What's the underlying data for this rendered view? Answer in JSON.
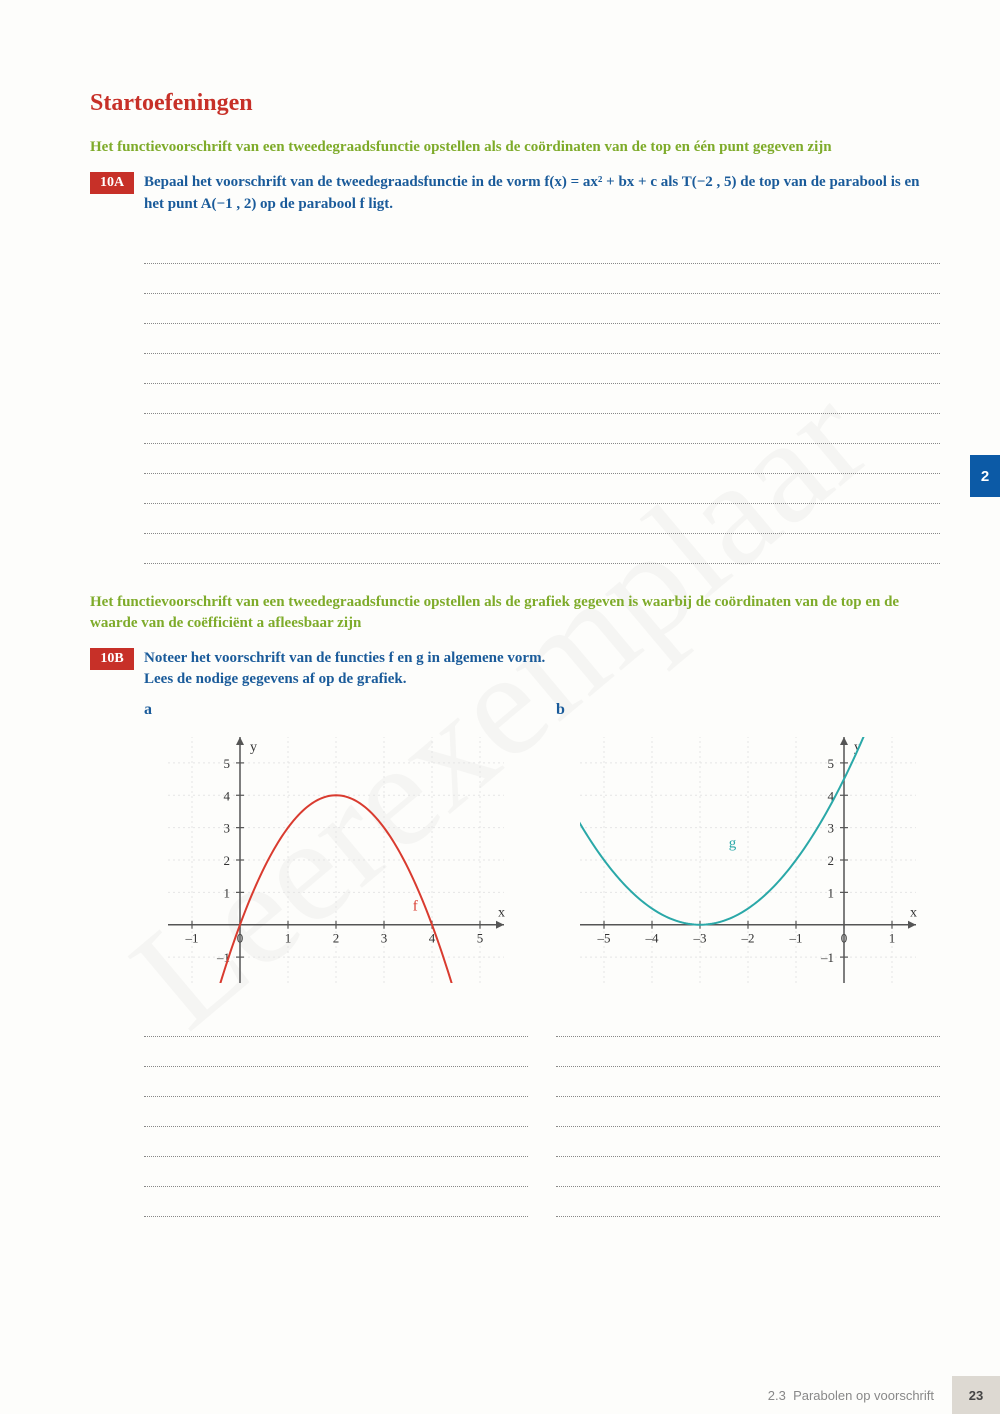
{
  "watermark": "Leerexemplaar",
  "section_title": "Startoefeningen",
  "intro1": "Het functievoorschrift van een tweedegraadsfunctie opstellen als de coördinaten van de top en één punt gegeven zijn",
  "ex10a": {
    "badge": "10A",
    "text": "Bepaal het voorschrift van de tweedegraadsfunctie in de vorm f(x) = ax² + bx + c als T(−2 , 5) de top van de parabool is en het punt A(−1 , 2) op de parabool f ligt."
  },
  "answer_lines_10a": 11,
  "intro2": "Het functievoorschrift van een tweedegraadsfunctie opstellen als de grafiek gegeven is waarbij de coördinaten van de top en de waarde van de coëfficiënt a afleesbaar zijn",
  "ex10b": {
    "badge": "10B",
    "text": "Noteer het voorschrift van de functies f en g in algemene vorm.\nLees de nodige gegevens af op de grafiek."
  },
  "sub_a": "a",
  "sub_b": "b",
  "answer_lines_small": 7,
  "side_tab": "2",
  "footer": {
    "section": "2.3",
    "title": "Parabolen op voorschrift",
    "page": "23"
  },
  "graph_a": {
    "type": "parabola",
    "curve_label": "f",
    "curve_color": "#d93b2f",
    "x_axis_label": "x",
    "y_axis_label": "y",
    "x_ticks": [
      -1,
      0,
      1,
      2,
      3,
      4,
      5
    ],
    "y_ticks": [
      -1,
      1,
      2,
      3,
      4,
      5
    ],
    "xlim": [
      -1.5,
      5.5
    ],
    "ylim": [
      -1.8,
      5.8
    ],
    "vertex": [
      2,
      4
    ],
    "a": -1,
    "grid_color": "#e5e5e5",
    "axis_color": "#555"
  },
  "graph_b": {
    "type": "parabola",
    "curve_label": "g",
    "curve_color": "#2aa8a8",
    "x_axis_label": "x",
    "y_axis_label": "y",
    "x_ticks": [
      -5,
      -4,
      -3,
      -2,
      -1,
      0,
      1
    ],
    "y_ticks": [
      -1,
      1,
      2,
      3,
      4,
      5
    ],
    "xlim": [
      -5.5,
      1.5
    ],
    "ylim": [
      -1.8,
      5.8
    ],
    "vertex": [
      -3,
      0
    ],
    "a": 0.5,
    "grid_color": "#e5e5e5",
    "axis_color": "#555"
  }
}
